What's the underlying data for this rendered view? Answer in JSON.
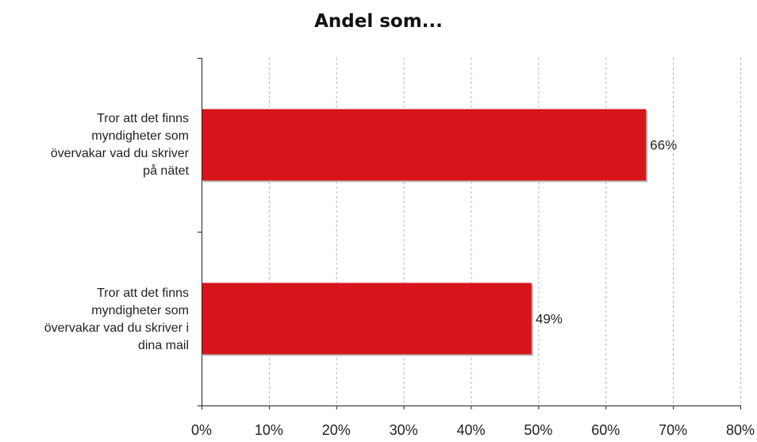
{
  "chart_data": {
    "type": "bar",
    "orientation": "horizontal",
    "title": "Andel som...",
    "categories": [
      "Tror att det finns myndigheter som övervakar vad du skriver på nätet",
      "Tror att det finns myndigheter som övervakar vad du skriver i dina mail"
    ],
    "category_lines": [
      [
        "Tror att det finns",
        "myndigheter som",
        "övervakar vad du skriver",
        "på nätet"
      ],
      [
        "Tror att det finns",
        "myndigheter som",
        "övervakar vad du skriver i",
        "dina mail"
      ]
    ],
    "values": [
      66,
      49
    ],
    "value_labels": [
      "66%",
      "49%"
    ],
    "xlim": [
      0,
      80
    ],
    "x_ticks": [
      0,
      10,
      20,
      30,
      40,
      50,
      60,
      70,
      80
    ],
    "x_tick_labels": [
      "0%",
      "10%",
      "20%",
      "30%",
      "40%",
      "50%",
      "60%",
      "70%",
      "80%"
    ],
    "grid": "vertical-dashed",
    "legend": "none",
    "colors": {
      "bar": "#d7141a",
      "bar_shadow": "#b8b8b8",
      "grid": "#b5b5b5",
      "axis": "#222222"
    }
  }
}
